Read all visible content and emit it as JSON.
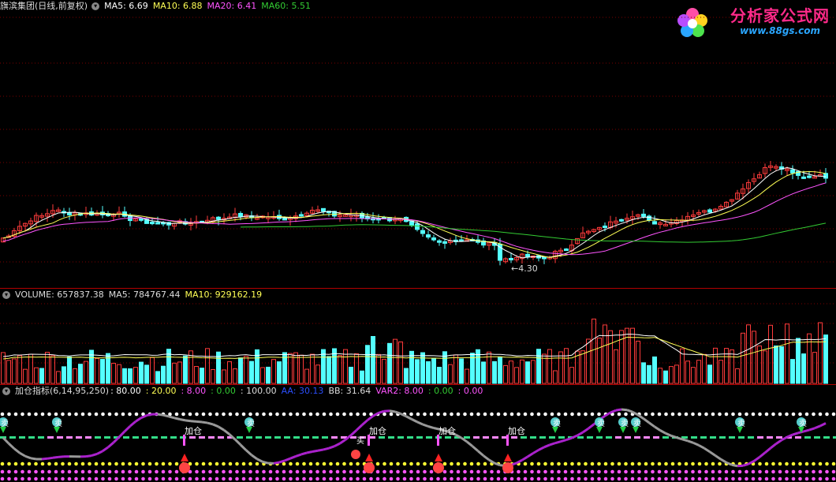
{
  "main_panel": {
    "title": "旗滨集团(日线,前复权)",
    "ma5": "MA5: 6.69",
    "ma10": "MA10: 6.88",
    "ma20": "MA20: 6.41",
    "ma60": "MA60: 5.51",
    "low_marker": "4.30"
  },
  "volume_panel": {
    "volume": "VOLUME: 657837.38",
    "ma5": "MA5: 784767.44",
    "ma10": "MA10: 929162.19"
  },
  "indicator_panel": {
    "name": "加仓指标(6,14,95,250)",
    "v1": ": 80.00",
    "v2": ": 20.00",
    "v3": ": 8.00",
    "v4": ": 0.00",
    "v5": ": 100.00",
    "aa": "AA: 30.13",
    "bb": "BB: 31.64",
    "var2": "VAR2: 8.00",
    "v6": ": 0.00",
    "v7": ": 0.00",
    "add_label": "加仓",
    "sell_label": "卖",
    "buy_label": "买"
  },
  "logo": {
    "text": "分析家公式网",
    "url": "www.88gs.com"
  },
  "colors": {
    "up": "#ff3b3b",
    "down": "#54ffff",
    "ma5": "#ffffff",
    "ma10": "#ffff55",
    "ma20": "#ff55ff",
    "ma60": "#33cc33",
    "background": "#000000"
  }
}
